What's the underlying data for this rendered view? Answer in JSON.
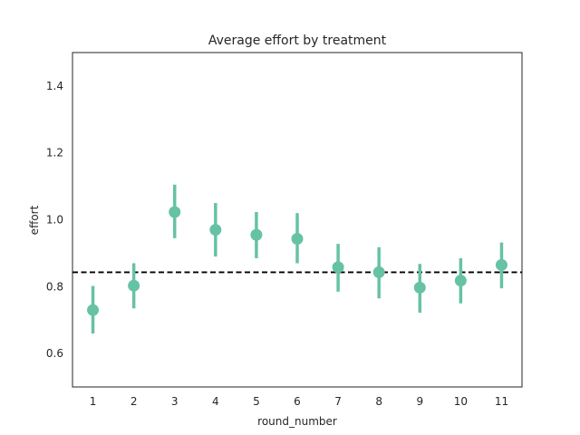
{
  "chart_data": {
    "type": "scatter",
    "title": "Average effort by treatment",
    "xlabel": "round_number",
    "ylabel": "effort",
    "categories": [
      "1",
      "2",
      "3",
      "4",
      "5",
      "6",
      "7",
      "8",
      "9",
      "10",
      "11"
    ],
    "values": [
      0.73,
      0.803,
      1.023,
      0.97,
      0.955,
      0.943,
      0.858,
      0.843,
      0.797,
      0.818,
      0.865
    ],
    "ci_low": [
      0.66,
      0.735,
      0.945,
      0.89,
      0.885,
      0.87,
      0.785,
      0.765,
      0.722,
      0.75,
      0.795
    ],
    "ci_high": [
      0.802,
      0.87,
      1.105,
      1.05,
      1.023,
      1.02,
      0.928,
      0.918,
      0.868,
      0.885,
      0.932
    ],
    "reference_line": 0.843,
    "ylim": [
      0.5,
      1.5
    ],
    "yticks": [
      "0.6",
      "0.8",
      "1.0",
      "1.2",
      "1.4"
    ],
    "grid": false,
    "colors": {
      "series": "#66c2a5",
      "reference": "#000000",
      "axes": "#262626"
    }
  }
}
